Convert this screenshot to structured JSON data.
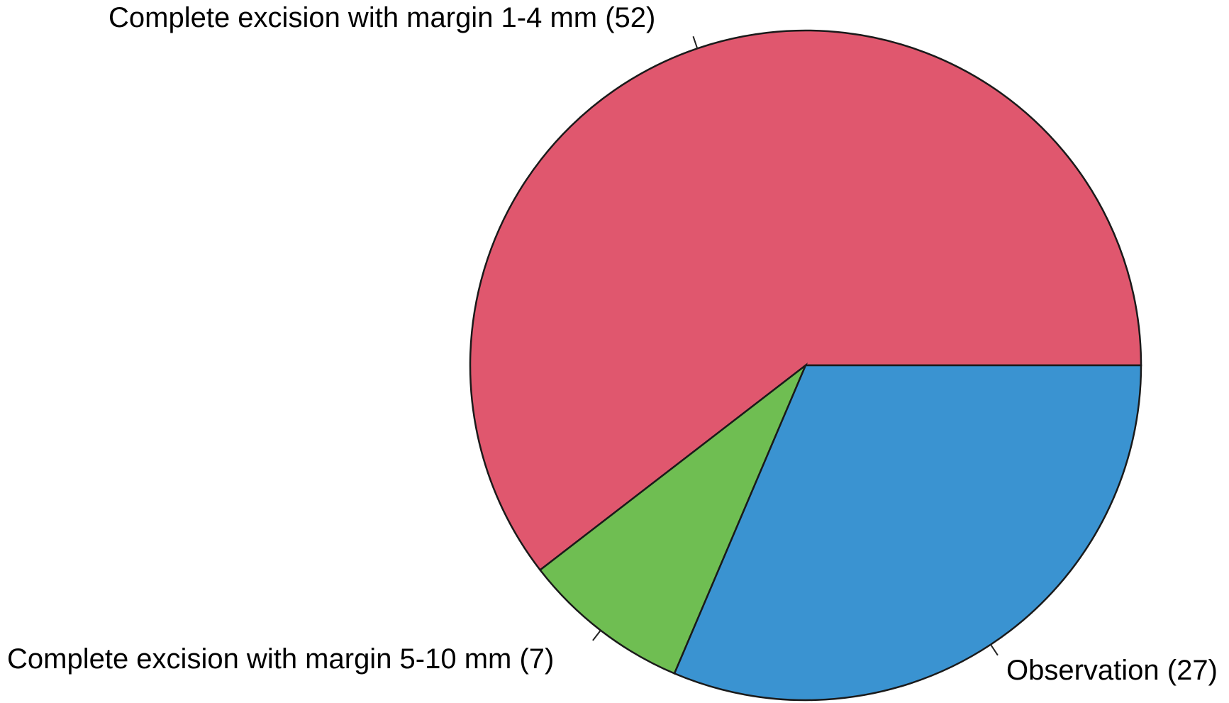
{
  "chart_data": {
    "type": "pie",
    "start_angle_deg": 0,
    "direction": "counterclockwise",
    "slices": [
      {
        "label": "Complete excision with margin 1-4 mm (52)",
        "value": 52,
        "color": "#e0576e"
      },
      {
        "label": "Complete excision with margin 5-10 mm (7)",
        "value": 7,
        "color": "#6fbe52"
      },
      {
        "label": "Observation (27)",
        "value": 27,
        "color": "#3a93d1"
      }
    ],
    "legend": "none"
  }
}
